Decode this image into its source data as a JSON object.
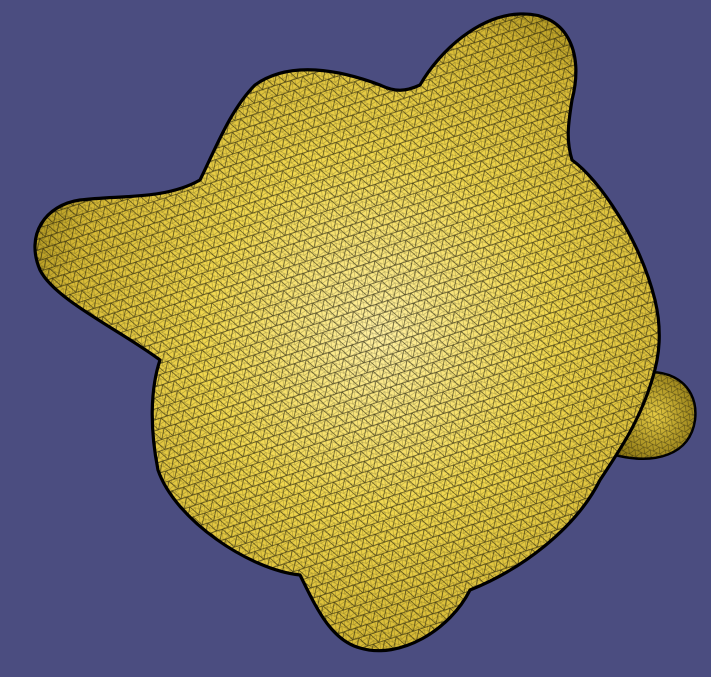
{
  "viewport": {
    "background_color": "#4b4d80"
  },
  "mesh": {
    "shape": "blobby-triangulated-surface",
    "fill_color": "#f2dc55",
    "highlight_color": "#fff3a0",
    "shadow_color": "#b59c22",
    "wire_color": "#1d1a08",
    "outline_color": "#000000",
    "lobes": 9
  }
}
